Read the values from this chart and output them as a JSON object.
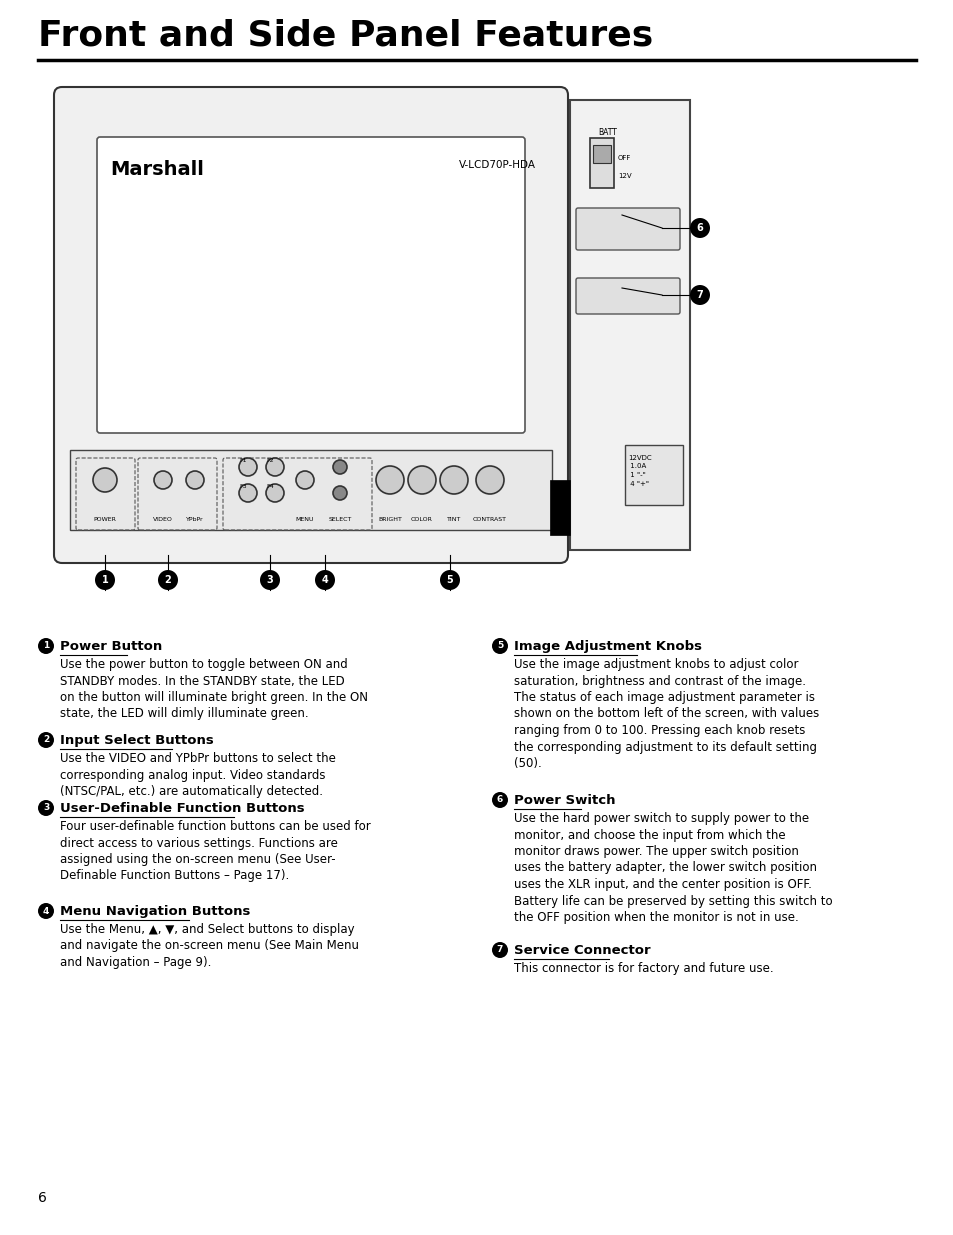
{
  "title": "Front and Side Panel Features",
  "bg_color": "#ffffff",
  "text_color": "#000000",
  "page_number": "6",
  "sections": [
    {
      "num": "1",
      "heading": "Power Button",
      "body": "Use the power button to toggle between ON and\nSTANDBY modes. In the STANDBY state, the LED\non the button will illuminate bright green. In the ON\nstate, the LED will dimly illuminate green."
    },
    {
      "num": "2",
      "heading": "Input Select Buttons",
      "body": "Use the VIDEO and YPbPr buttons to select the\ncorresponding analog input. Video standards\n(NTSC/PAL, etc.) are automatically detected."
    },
    {
      "num": "3",
      "heading": "User-Definable Function Buttons",
      "body": "Four user-definable function buttons can be used for\ndirect access to various settings. Functions are\nassigned using the on-screen menu (See User-\nDefinable Function Buttons – Page 17)."
    },
    {
      "num": "4",
      "heading": "Menu Navigation Buttons",
      "body": "Use the Menu, ▲, ▼, and Select buttons to display\nand navigate the on-screen menu (See Main Menu\nand Navigation – Page 9)."
    },
    {
      "num": "5",
      "heading": "Image Adjustment Knobs",
      "body": "Use the image adjustment knobs to adjust color\nsaturation, brightness and contrast of the image.\nThe status of each image adjustment parameter is\nshown on the bottom left of the screen, with values\nranging from 0 to 100. Pressing each knob resets\nthe corresponding adjustment to its default setting\n(50)."
    },
    {
      "num": "6",
      "heading": "Power Switch",
      "body": "Use the hard power switch to supply power to the\nmonitor, and choose the input from which the\nmonitor draws power. The upper switch position\nuses the battery adapter, the lower switch position\nuses the XLR input, and the center position is OFF.\nBattery life can be preserved by setting this switch to\nthe OFF position when the monitor is not in use."
    },
    {
      "num": "7",
      "heading": "Service Connector",
      "body": "This connector is for factory and future use."
    }
  ]
}
